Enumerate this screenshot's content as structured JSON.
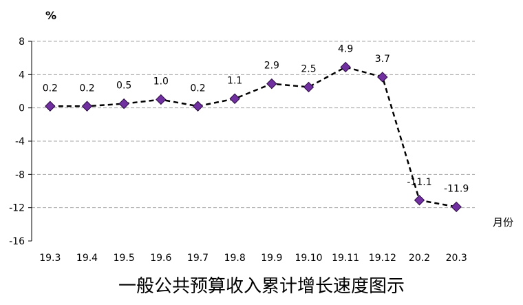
{
  "chart_data": {
    "type": "line",
    "title": "一般公共预算收入累计增长速度图示",
    "ylabel": "%",
    "xlabel": "月份",
    "ylim": [
      -16,
      8
    ],
    "yticks": [
      8,
      4,
      0,
      -4,
      -8,
      -12,
      -16
    ],
    "grid": true,
    "categories": [
      "19.3",
      "19.4",
      "19.5",
      "19.6",
      "19.7",
      "19.8",
      "19.9",
      "19.10",
      "19.11",
      "19.12",
      "20.2",
      "20.3"
    ],
    "series": [
      {
        "values": [
          0.2,
          0.2,
          0.5,
          1.0,
          0.2,
          1.1,
          2.9,
          2.5,
          4.9,
          3.7,
          -11.1,
          -11.9
        ],
        "labels": [
          "0.2",
          "0.2",
          "0.5",
          "1.0",
          "0.2",
          "1.1",
          "2.9",
          "2.5",
          "4.9",
          "3.7",
          "-11.1",
          "-11.9"
        ]
      }
    ],
    "colors": {
      "marker": "#7030A0",
      "line": "#000000",
      "grid": "#a6a6a6"
    }
  }
}
